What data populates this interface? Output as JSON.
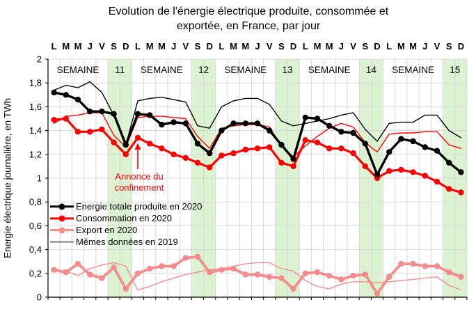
{
  "title": {
    "line1": "Evolution de l'énergie électrique produite, consommée et",
    "line2": "exportée, en France, par jour"
  },
  "chart_data": {
    "type": "line",
    "title": "Evolution de l'énergie électrique produite, consommée et exportée, en France, par jour",
    "ylabel": "Energie électrique journalière, en TWh",
    "ylim": [
      0,
      2
    ],
    "y_tick_step": 0.2,
    "y_tick_labels": [
      "2",
      "1,8",
      "1,6",
      "1,4",
      "1,2",
      "1",
      "0,8",
      "0,6",
      "0,4",
      "0,2",
      "0"
    ],
    "grid": true,
    "day_labels": [
      "L",
      "M",
      "M",
      "J",
      "V",
      "S",
      "D"
    ],
    "week_word": "SEMAINE",
    "weeks": [
      "11",
      "12",
      "13",
      "14",
      "15"
    ],
    "weekend_band_color": "#DBF3D0",
    "gridline_color": "#D9D9D9",
    "legend": [
      "Energie totale produite en 2020",
      "Consommation en 2020",
      "Export en 2020",
      "Mêmes données en 2019"
    ],
    "annotation": {
      "line1": "Annonce du",
      "line2": "confinement",
      "color": "#FF0000",
      "day_index": 7
    },
    "series": [
      {
        "name": "Energie totale produite en 2020",
        "color": "#000000",
        "width": 3.4,
        "markers": true,
        "values": [
          1.72,
          1.7,
          1.66,
          1.56,
          1.56,
          1.54,
          1.28,
          1.54,
          1.53,
          1.45,
          1.47,
          1.46,
          1.29,
          1.21,
          1.4,
          1.46,
          1.46,
          1.46,
          1.4,
          1.28,
          1.16,
          1.51,
          1.5,
          1.44,
          1.39,
          1.38,
          1.29,
          1.03,
          1.22,
          1.33,
          1.31,
          1.26,
          1.23,
          1.13,
          1.05
        ]
      },
      {
        "name": "Consommation en 2020",
        "color": "#FF0000",
        "width": 3.2,
        "markers": true,
        "values": [
          1.49,
          1.5,
          1.39,
          1.39,
          1.41,
          1.3,
          1.2,
          1.34,
          1.29,
          1.25,
          1.2,
          1.17,
          1.13,
          1.09,
          1.19,
          1.21,
          1.24,
          1.25,
          1.26,
          1.13,
          1.1,
          1.32,
          1.3,
          1.25,
          1.25,
          1.21,
          1.1,
          1.0,
          1.06,
          1.07,
          1.05,
          1.02,
          0.97,
          0.91,
          0.88
        ]
      },
      {
        "name": "Export en 2020",
        "color": "#F58C8C",
        "width": 3.8,
        "markers": true,
        "values": [
          0.23,
          0.21,
          0.28,
          0.19,
          0.16,
          0.25,
          0.07,
          0.2,
          0.24,
          0.26,
          0.26,
          0.33,
          0.34,
          0.21,
          0.23,
          0.24,
          0.19,
          0.19,
          0.17,
          0.16,
          0.07,
          0.2,
          0.21,
          0.18,
          0.15,
          0.18,
          0.19,
          0.03,
          0.17,
          0.28,
          0.28,
          0.26,
          0.26,
          0.21,
          0.17
        ]
      },
      {
        "name": "Energie totale produite en 2019",
        "color": "#000000",
        "width": 1.4,
        "markers": false,
        "values": [
          1.74,
          1.78,
          1.76,
          1.81,
          1.72,
          1.53,
          1.28,
          1.65,
          1.67,
          1.68,
          1.66,
          1.64,
          1.44,
          1.42,
          1.6,
          1.65,
          1.67,
          1.67,
          1.62,
          1.48,
          1.44,
          1.46,
          1.48,
          1.5,
          1.53,
          1.55,
          1.41,
          1.31,
          1.46,
          1.47,
          1.47,
          1.53,
          1.53,
          1.4,
          1.34
        ]
      },
      {
        "name": "Consommation en 2019",
        "color": "#FF0000",
        "width": 1.4,
        "markers": false,
        "values": [
          1.46,
          1.52,
          1.53,
          1.55,
          1.55,
          1.36,
          1.26,
          1.51,
          1.52,
          1.52,
          1.51,
          1.5,
          1.35,
          1.25,
          1.42,
          1.44,
          1.45,
          1.45,
          1.43,
          1.27,
          1.18,
          1.27,
          1.35,
          1.42,
          1.46,
          1.43,
          1.3,
          1.22,
          1.37,
          1.38,
          1.38,
          1.39,
          1.39,
          1.28,
          1.25
        ]
      },
      {
        "name": "Export en 2019",
        "color": "#F58C8C",
        "width": 1.4,
        "markers": false,
        "values": [
          0.22,
          0.22,
          0.18,
          0.24,
          0.27,
          0.29,
          0.26,
          0.06,
          0.09,
          0.13,
          0.16,
          0.19,
          0.21,
          0.23,
          0.24,
          0.26,
          0.28,
          0.29,
          0.29,
          0.24,
          0.22,
          0.14,
          0.09,
          0.07,
          0.11,
          0.13,
          0.13,
          0.12,
          0.13,
          0.14,
          0.15,
          0.16,
          0.17,
          0.1,
          0.06
        ]
      }
    ]
  }
}
